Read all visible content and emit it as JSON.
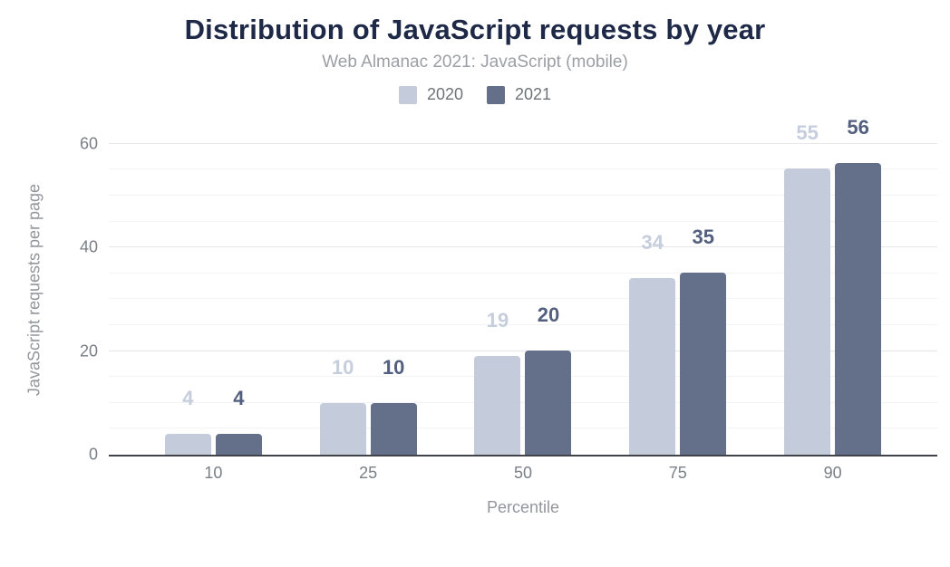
{
  "chart_data": {
    "type": "bar",
    "title": "Distribution of JavaScript requests by year",
    "subtitle": "Web Almanac 2021: JavaScript (mobile)",
    "xlabel": "Percentile",
    "ylabel": "JavaScript requests per page",
    "categories": [
      "10",
      "25",
      "50",
      "75",
      "90"
    ],
    "series": [
      {
        "name": "2020",
        "values": [
          4,
          10,
          19,
          34,
          55
        ],
        "color": "#c4cbda",
        "label_color": "#c6cedd"
      },
      {
        "name": "2021",
        "values": [
          4,
          10,
          20,
          35,
          56
        ],
        "color": "#64708a",
        "label_color": "#535f7e"
      }
    ],
    "ylim": [
      0,
      64
    ],
    "yticks": [
      0,
      20,
      40,
      60
    ],
    "minor_grid_step": 5,
    "grid": true,
    "legend_position": "top",
    "data_labels": true
  },
  "colors": {
    "title": "#1e2947",
    "subtitle": "#9b9fa4",
    "tick_label": "#797f86",
    "axis_title": "#92969c",
    "axis_line": "#404349",
    "grid_major": "#e4e6e9",
    "grid_minor": "#f2f3f5",
    "background": "#ffffff"
  }
}
